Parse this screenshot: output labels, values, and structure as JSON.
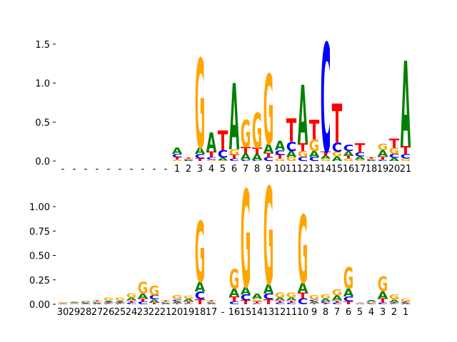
{
  "chart_data": [
    {
      "type": "logo",
      "categories": [
        "-",
        "-",
        "-",
        "-",
        "-",
        "-",
        "-",
        "-",
        "-",
        "-",
        "1",
        "2",
        "3",
        "4",
        "5",
        "6",
        "7",
        "8",
        "9",
        "10",
        "11",
        "12",
        "13",
        "14",
        "15",
        "16",
        "17",
        "18",
        "19",
        "20",
        "21"
      ],
      "series": [
        {
          "name": "A",
          "color": "#008000",
          "values": [
            0,
            0,
            0,
            0,
            0,
            0,
            0,
            0,
            0,
            0,
            0.08,
            0.01,
            0.08,
            0.25,
            0.03,
            0.85,
            0.08,
            0.08,
            0.12,
            0.12,
            0.08,
            0.75,
            0.08,
            0.04,
            0.06,
            0.06,
            0.04,
            0.01,
            0.08,
            0.04,
            1.1
          ]
        },
        {
          "name": "C",
          "color": "#0000ff",
          "values": [
            0,
            0,
            0,
            0,
            0,
            0,
            0,
            0,
            0,
            0,
            0.04,
            0.01,
            0.06,
            0.03,
            0.1,
            0.03,
            0.02,
            0.01,
            0.05,
            0.06,
            0.12,
            0.05,
            0.05,
            1.4,
            0.12,
            0.08,
            0.05,
            0.01,
            0.02,
            0.05,
            0.06
          ]
        },
        {
          "name": "G",
          "color": "#ffa500",
          "values": [
            0,
            0,
            0,
            0,
            0,
            0,
            0,
            0,
            0,
            0,
            0.02,
            0.01,
            1.15,
            0.02,
            0.01,
            0.07,
            0.35,
            0.45,
            0.9,
            0.03,
            0.05,
            0.08,
            0.15,
            0.03,
            0.06,
            0.03,
            0.02,
            0.01,
            0.08,
            0.08,
            0.03
          ]
        },
        {
          "name": "T",
          "color": "#ff0000",
          "values": [
            0,
            0,
            0,
            0,
            0,
            0,
            0,
            0,
            0,
            0,
            0.03,
            0.01,
            0.03,
            0.07,
            0.25,
            0.05,
            0.08,
            0.08,
            0.05,
            0.05,
            0.3,
            0.1,
            0.25,
            0.05,
            0.5,
            0.04,
            0.12,
            0.02,
            0.04,
            0.12,
            0.1
          ]
        }
      ],
      "ylim": [
        -0.02,
        1.55
      ],
      "yticks": [
        {
          "value": 0,
          "label": "0.0"
        },
        {
          "value": 0.5,
          "label": "0.5"
        },
        {
          "value": 1,
          "label": "1.0"
        },
        {
          "value": 1.5,
          "label": "1.5"
        }
      ]
    },
    {
      "type": "logo",
      "categories": [
        "30",
        "29",
        "28",
        "27",
        "26",
        "25",
        "24",
        "23",
        "22",
        "21",
        "20",
        "19",
        "18",
        "17",
        "-",
        "16",
        "15",
        "14",
        "13",
        "12",
        "11",
        "10",
        "9",
        "8",
        "7",
        "6",
        "5",
        "4",
        "3",
        "2",
        "1"
      ],
      "series": [
        {
          "name": "A",
          "color": "#008000",
          "values": [
            0.005,
            0.01,
            0.01,
            0.01,
            0.02,
            0.02,
            0.03,
            0.05,
            0.03,
            0.01,
            0.02,
            0.03,
            0.1,
            0.01,
            0,
            0.08,
            0.08,
            0.05,
            0.1,
            0.03,
            0.03,
            0.1,
            0.02,
            0.03,
            0.05,
            0.08,
            0.005,
            0.02,
            0.07,
            0.03,
            0.01
          ]
        },
        {
          "name": "C",
          "color": "#0000ff",
          "values": [
            0.005,
            0.005,
            0.01,
            0.01,
            0.01,
            0.01,
            0.02,
            0.03,
            0.04,
            0.01,
            0.02,
            0.01,
            0.08,
            0.01,
            0,
            0.03,
            0.06,
            0.01,
            0.06,
            0.02,
            0.02,
            0.06,
            0.02,
            0.02,
            0.02,
            0.05,
            0.005,
            0.01,
            0.02,
            0.01,
            0.01
          ]
        },
        {
          "name": "G",
          "color": "#ffa500",
          "values": [
            0.01,
            0.005,
            0.01,
            0.01,
            0.03,
            0.03,
            0.04,
            0.12,
            0.1,
            0.01,
            0.04,
            0.03,
            0.62,
            0.01,
            0,
            0.2,
            1.0,
            0.03,
            1.0,
            0.05,
            0.05,
            0.7,
            0.04,
            0.04,
            0.06,
            0.22,
            0.005,
            0.01,
            0.15,
            0.05,
            0.03
          ]
        },
        {
          "name": "T",
          "color": "#ff0000",
          "values": [
            0.005,
            0.005,
            0.005,
            0.01,
            0.01,
            0.01,
            0.02,
            0.03,
            0.02,
            0.01,
            0.01,
            0.02,
            0.05,
            0.01,
            0,
            0.05,
            0.04,
            0.02,
            0.05,
            0.02,
            0.02,
            0.06,
            0.01,
            0.01,
            0.02,
            0.03,
            0.005,
            0.005,
            0.04,
            0.01,
            0.01
          ]
        }
      ],
      "ylim": [
        -0.01,
        1.25
      ],
      "yticks": [
        {
          "value": 0,
          "label": "0.00"
        },
        {
          "value": 0.25,
          "label": "0.25"
        },
        {
          "value": 0.5,
          "label": "0.50"
        },
        {
          "value": 0.75,
          "label": "0.75"
        },
        {
          "value": 1,
          "label": "1.00"
        }
      ]
    }
  ]
}
